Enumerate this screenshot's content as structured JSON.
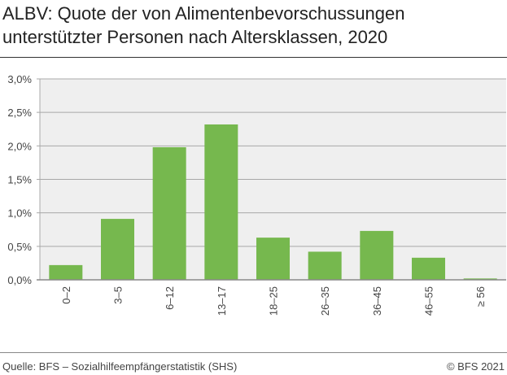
{
  "title_line1": "ALBV: Quote der von  Alimentenbevorschussungen",
  "title_line2": "unterstützter Personen nach Altersklassen, 2020",
  "footer": {
    "source": "Quelle: BFS – Sozialhilfeempfängerstatistik (SHS)",
    "copyright": "© BFS 2021"
  },
  "chart_data": {
    "type": "bar",
    "categories": [
      "0–2",
      "3–5",
      "6–12",
      "13–17",
      "18–25",
      "26–35",
      "36–45",
      "46–55",
      "≥ 56"
    ],
    "values": [
      0.22,
      0.91,
      1.98,
      2.32,
      0.63,
      0.42,
      0.73,
      0.33,
      0.02
    ],
    "ylim": [
      0,
      3.0
    ],
    "yticks": [
      "0,0%",
      "0,5%",
      "1,0%",
      "1,5%",
      "2,0%",
      "2,5%",
      "3,0%"
    ],
    "grid": true,
    "colors": {
      "bar": "#76b84e",
      "plot_bg": "#efefef",
      "grid": "#a8a8a8"
    }
  }
}
